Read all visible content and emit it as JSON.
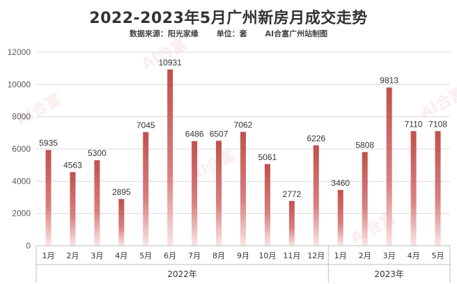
{
  "chart_data": {
    "type": "bar",
    "title": "2022-2023年5月广州新房月成交走势",
    "subtitle": {
      "source": "数据来源：阳光家缘",
      "unit": "单位：套",
      "credit": "AI合富广州站制图"
    },
    "xlabel": "",
    "ylabel": "",
    "ylim": [
      0,
      12000
    ],
    "yticks": [
      "0",
      "2000",
      "4000",
      "6000",
      "8000",
      "10000",
      "12000"
    ],
    "grid": true,
    "categories": [
      "1月",
      "2月",
      "3月",
      "4月",
      "5月",
      "6月",
      "7月",
      "8月",
      "9月",
      "10月",
      "11月",
      "12月",
      "1月",
      "2月",
      "3月",
      "4月",
      "5月"
    ],
    "groups": [
      {
        "label": "2022年",
        "count": 12
      },
      {
        "label": "2023年",
        "count": 5
      }
    ],
    "values": [
      5935,
      4563,
      5300,
      2895,
      7045,
      10931,
      6486,
      6507,
      7062,
      5061,
      2772,
      6226,
      3460,
      5808,
      9813,
      7110,
      7108
    ],
    "colors": {
      "bar_top": "#c0504d",
      "bar_bottom": "#fbe4e4",
      "axis": "#bfbfbf",
      "grid": "#d9d9d9"
    }
  },
  "watermark": "AI合富"
}
